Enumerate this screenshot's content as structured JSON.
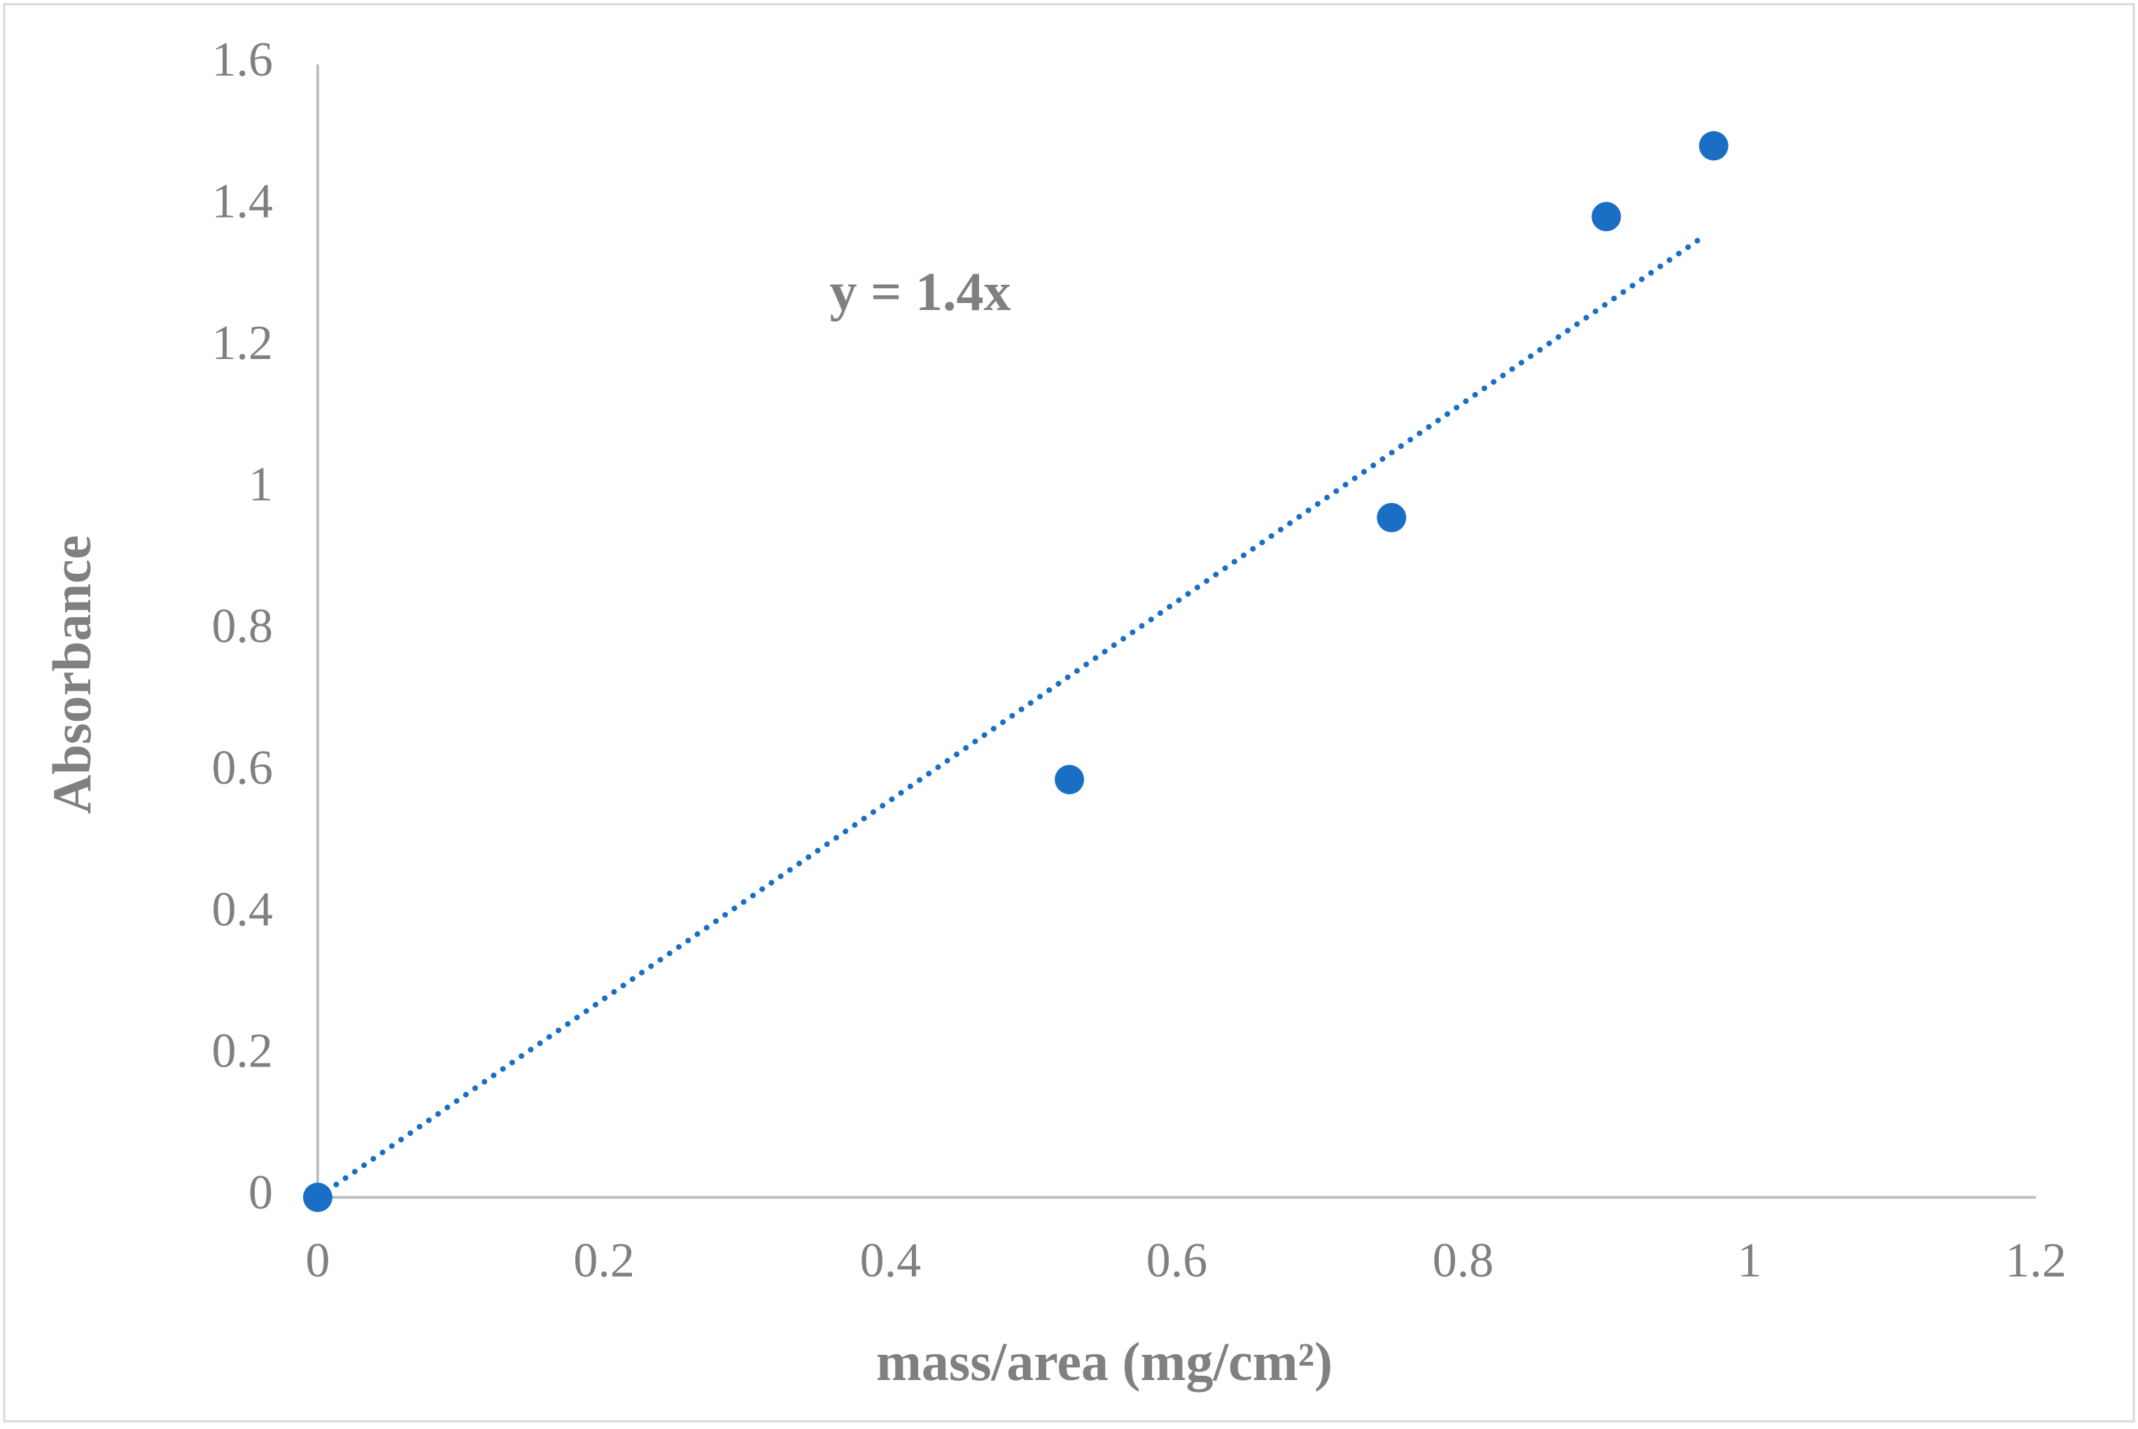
{
  "chart_data": {
    "type": "scatter",
    "x_label": "mass/area (mg/cm²)",
    "y_label": "Absorbance",
    "annotations": [
      {
        "text": "y = 1.4x"
      }
    ],
    "series": [
      {
        "color": "#1a6fc5",
        "x": [
          0,
          0.525,
          0.75,
          0.9,
          0.975
        ],
        "values": [
          0,
          0.59,
          0.96,
          1.385,
          1.485
        ]
      }
    ],
    "trendline": {
      "color": "#1a6fc5",
      "style": "dotted",
      "x": [
        0,
        0.97
      ],
      "values": [
        0,
        1.36
      ]
    },
    "xlim": [
      0,
      1.2
    ],
    "xticks": [
      0,
      0.2,
      0.4,
      0.6,
      0.8,
      1,
      1.2
    ],
    "ylim": [
      0,
      1.6
    ],
    "yticks": [
      0,
      0.2,
      0.4,
      0.6,
      0.8,
      1,
      1.2,
      1.4,
      1.6
    ],
    "grid": false
  }
}
